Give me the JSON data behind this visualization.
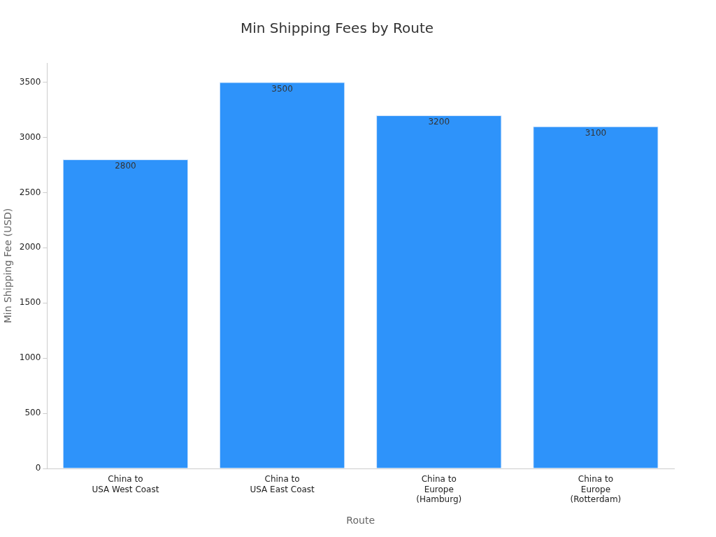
{
  "chart_data": {
    "type": "bar",
    "title": "Min Shipping Fees by Route",
    "xlabel": "Route",
    "ylabel": "Min Shipping Fee (USD)",
    "categories": [
      "China to\nUSA West Coast",
      "China to\nUSA East Coast",
      "China to\nEurope\n(Hamburg)",
      "China to\nEurope\n(Rotterdam)"
    ],
    "values": [
      2800,
      3500,
      3200,
      3100
    ],
    "color": "#2e93fa",
    "ylim": [
      0,
      3675
    ],
    "yticks": [
      0,
      500,
      1000,
      1500,
      2000,
      2500,
      3000,
      3500
    ],
    "grid": false,
    "legend": false,
    "data_labels": true
  }
}
